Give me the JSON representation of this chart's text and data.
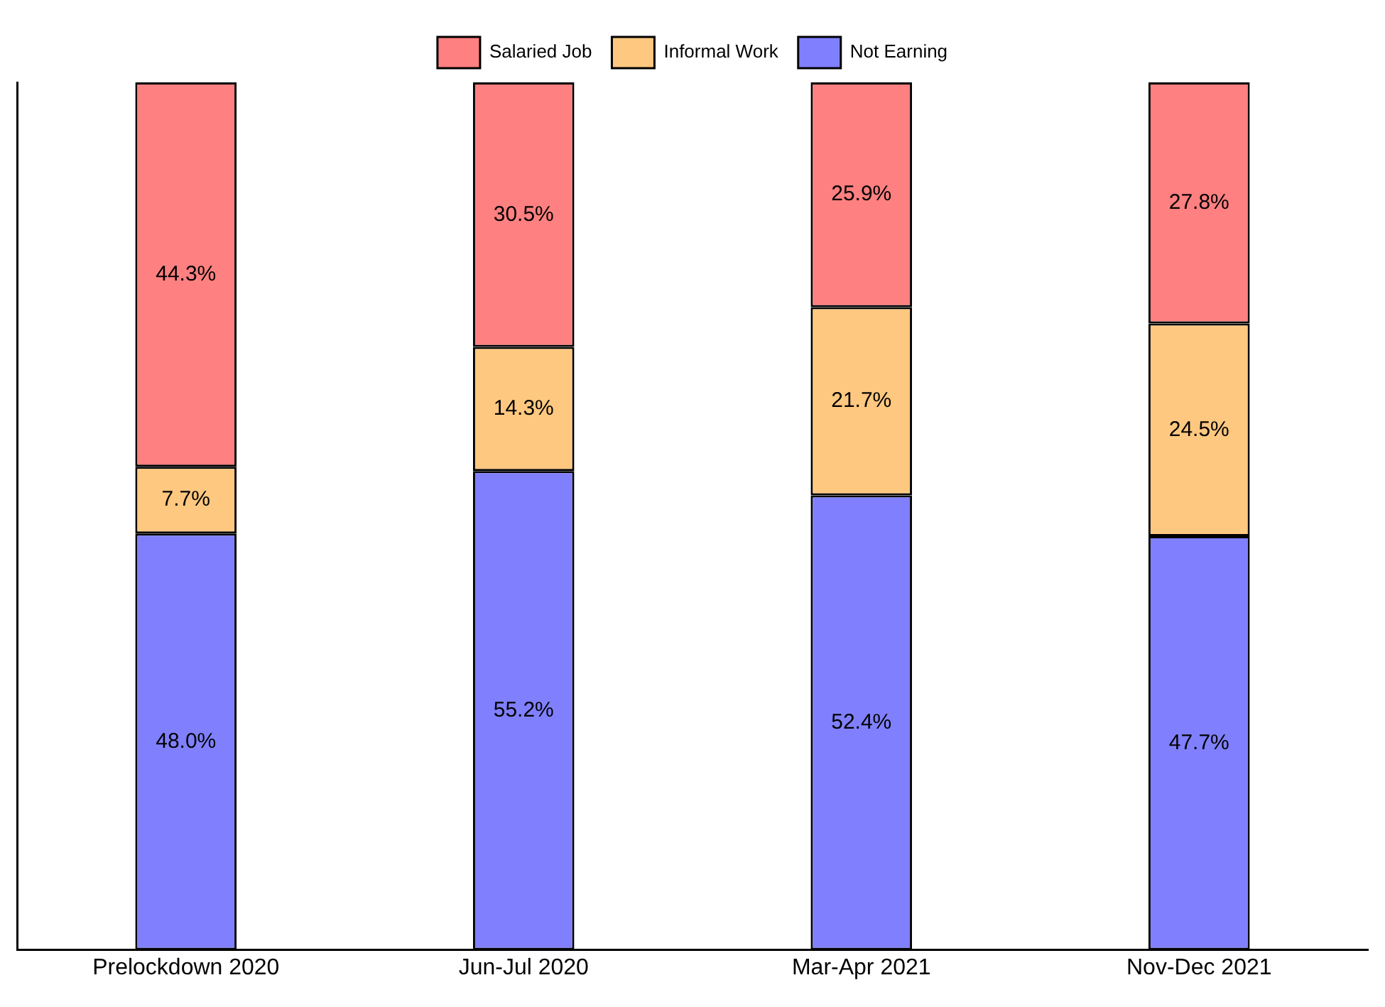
{
  "chart_data": {
    "type": "bar",
    "stacked": true,
    "categories": [
      "Prelockdown 2020",
      "Jun-Jul 2020",
      "Mar-Apr 2021",
      "Nov-Dec 2021"
    ],
    "series": [
      {
        "name": "Not Earning",
        "color": "#8080ff",
        "values": [
          48.0,
          55.2,
          52.4,
          47.7
        ],
        "value_labels": [
          "48.0%",
          "55.2%",
          "52.4%",
          "47.7%"
        ]
      },
      {
        "name": "Informal Work",
        "color": "#ffc880",
        "values": [
          7.7,
          14.3,
          21.7,
          24.5
        ],
        "value_labels": [
          "7.7%",
          "14.3%",
          "21.7%",
          "24.5%"
        ]
      },
      {
        "name": "Salaried Job",
        "color": "#ff8080",
        "values": [
          44.3,
          30.5,
          25.9,
          27.8
        ],
        "value_labels": [
          "44.3%",
          "30.5%",
          "25.9%",
          "27.8%"
        ]
      }
    ],
    "ylim": [
      0,
      100
    ],
    "legend": "top",
    "grid": false,
    "tick_labels": "x"
  }
}
